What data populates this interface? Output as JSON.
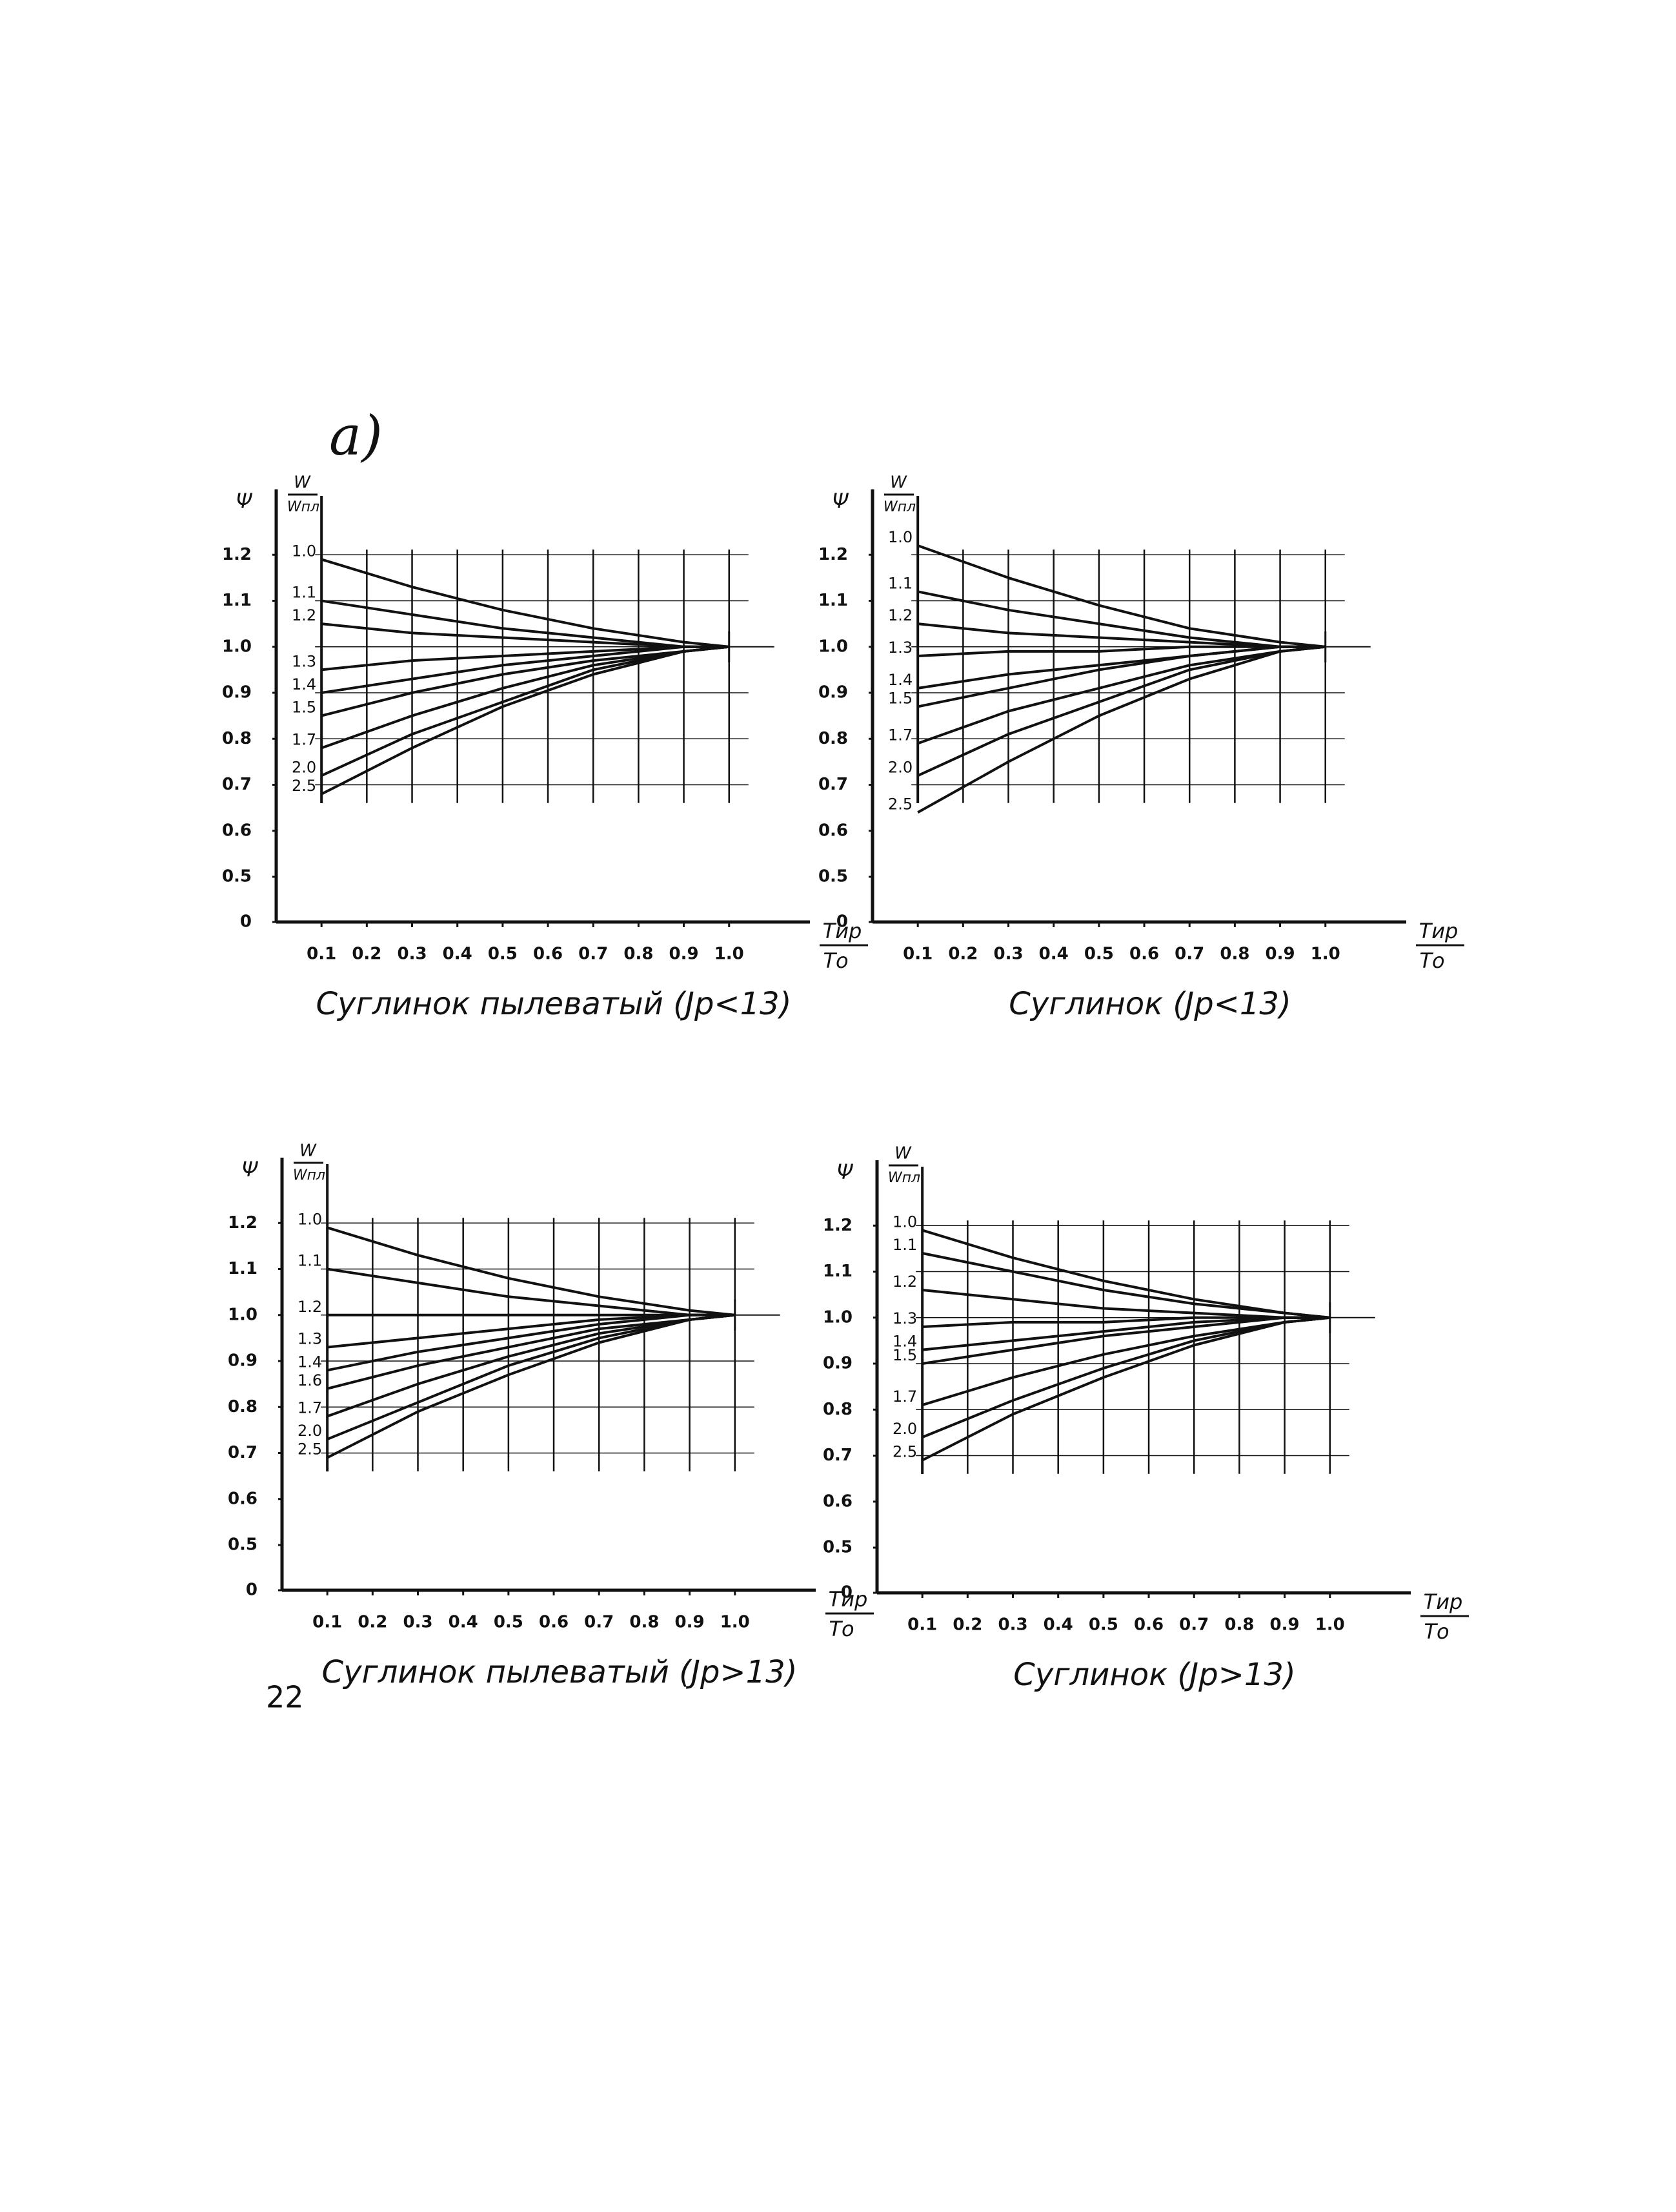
{
  "page": {
    "label": "а)",
    "page_number": "22"
  },
  "chart_data": [
    {
      "type": "line",
      "title": "Суглинок пылеватый (Jp<13)",
      "y_label": "Ψ",
      "y2_label": {
        "numerator": "W",
        "denominator": "Wпл"
      },
      "x_label": {
        "numerator": "Tир",
        "denominator": "Tо"
      },
      "x": [
        0.1,
        0.3,
        0.5,
        0.7,
        0.9,
        1.0
      ],
      "xlim": [
        0,
        1.15
      ],
      "xticks": [
        0.1,
        0.2,
        0.3,
        0.4,
        0.5,
        0.6,
        0.7,
        0.8,
        0.9,
        {
          "value": 1,
          "label": "1.0"
        }
      ],
      "ylim": [
        0,
        1.3
      ],
      "axis_break": [
        0,
        0.5
      ],
      "yticks": [
        0,
        0.5,
        0.6,
        0.7,
        0.8,
        0.9,
        {
          "value": 1,
          "label": "1.0"
        },
        1.1,
        1.2
      ],
      "grid": true,
      "color": "#111",
      "series": [
        {
          "name": "1.0",
          "values": [
            1.19,
            1.13,
            1.08,
            1.04,
            1.01,
            1.0
          ]
        },
        {
          "name": "1.1",
          "values": [
            1.1,
            1.07,
            1.04,
            1.02,
            1.0,
            1.0
          ]
        },
        {
          "name": "1.2",
          "values": [
            1.05,
            1.03,
            1.02,
            1.01,
            1.0,
            1.0
          ]
        },
        {
          "name": "1.3",
          "values": [
            0.95,
            0.97,
            0.98,
            0.99,
            1.0,
            1.0
          ]
        },
        {
          "name": "1.4",
          "values": [
            0.9,
            0.93,
            0.96,
            0.98,
            1.0,
            1.0
          ]
        },
        {
          "name": "1.5",
          "values": [
            0.85,
            0.9,
            0.94,
            0.97,
            0.99,
            1.0
          ]
        },
        {
          "name": "1.7",
          "values": [
            0.78,
            0.85,
            0.91,
            0.96,
            0.99,
            1.0
          ]
        },
        {
          "name": "2.0",
          "values": [
            0.72,
            0.81,
            0.88,
            0.95,
            0.99,
            1.0
          ]
        },
        {
          "name": "2.5",
          "values": [
            0.68,
            0.78,
            0.87,
            0.94,
            0.99,
            1.0
          ]
        }
      ]
    },
    {
      "type": "line",
      "title": "Суглинок (Jp<13)",
      "y_label": "Ψ",
      "y2_label": {
        "numerator": "W",
        "denominator": "Wпл"
      },
      "x_label": {
        "numerator": "Tир",
        "denominator": "Tо"
      },
      "x": [
        0.1,
        0.3,
        0.5,
        0.7,
        0.9,
        1.0
      ],
      "xlim": [
        0,
        1.15
      ],
      "xticks": [
        0.1,
        0.2,
        0.3,
        0.4,
        0.5,
        0.6,
        0.7,
        0.8,
        0.9,
        {
          "value": 1,
          "label": "1.0"
        }
      ],
      "ylim": [
        0,
        1.3
      ],
      "axis_break": [
        0,
        0.5
      ],
      "yticks": [
        0,
        0.5,
        0.6,
        0.7,
        0.8,
        0.9,
        {
          "value": 1,
          "label": "1.0"
        },
        1.1,
        1.2
      ],
      "grid": true,
      "color": "#111",
      "series": [
        {
          "name": "1.0",
          "values": [
            1.22,
            1.15,
            1.09,
            1.04,
            1.01,
            1.0
          ]
        },
        {
          "name": "1.1",
          "values": [
            1.12,
            1.08,
            1.05,
            1.02,
            1.0,
            1.0
          ]
        },
        {
          "name": "1.2",
          "values": [
            1.05,
            1.03,
            1.02,
            1.01,
            1.0,
            1.0
          ]
        },
        {
          "name": "1.3",
          "values": [
            0.98,
            0.99,
            0.99,
            1.0,
            1.0,
            1.0
          ]
        },
        {
          "name": "1.4",
          "values": [
            0.91,
            0.94,
            0.96,
            0.98,
            1.0,
            1.0
          ]
        },
        {
          "name": "1.5",
          "values": [
            0.87,
            0.91,
            0.95,
            0.98,
            1.0,
            1.0
          ]
        },
        {
          "name": "1.7",
          "values": [
            0.79,
            0.86,
            0.91,
            0.96,
            0.99,
            1.0
          ]
        },
        {
          "name": "2.0",
          "values": [
            0.72,
            0.81,
            0.88,
            0.95,
            0.99,
            1.0
          ]
        },
        {
          "name": "2.5",
          "values": [
            0.64,
            0.75,
            0.85,
            0.93,
            0.99,
            1.0
          ]
        }
      ]
    },
    {
      "type": "line",
      "title": "Суглинок пылеватый (Jp>13)",
      "y_label": "Ψ",
      "y2_label": {
        "numerator": "W",
        "denominator": "Wпл"
      },
      "x_label": {
        "numerator": "Tир",
        "denominator": "Tо"
      },
      "x": [
        0.1,
        0.3,
        0.5,
        0.7,
        0.9,
        1.0
      ],
      "xlim": [
        0,
        1.15
      ],
      "xticks": [
        0.1,
        0.2,
        0.3,
        0.4,
        0.5,
        0.6,
        0.7,
        0.8,
        0.9,
        {
          "value": 1,
          "label": "1.0"
        }
      ],
      "ylim": [
        0,
        1.3
      ],
      "axis_break": [
        0,
        0.5
      ],
      "yticks": [
        0,
        0.5,
        0.6,
        0.7,
        0.8,
        0.9,
        {
          "value": 1,
          "label": "1.0"
        },
        1.1,
        1.2
      ],
      "grid": true,
      "color": "#111",
      "series": [
        {
          "name": "1.0",
          "values": [
            1.19,
            1.13,
            1.08,
            1.04,
            1.01,
            1.0
          ]
        },
        {
          "name": "1.1",
          "values": [
            1.1,
            1.07,
            1.04,
            1.02,
            1.0,
            1.0
          ]
        },
        {
          "name": "1.2",
          "values": [
            1.0,
            1.0,
            1.0,
            1.0,
            1.0,
            1.0
          ]
        },
        {
          "name": "1.3",
          "values": [
            0.93,
            0.95,
            0.97,
            0.99,
            1.0,
            1.0
          ]
        },
        {
          "name": "1.4",
          "values": [
            0.88,
            0.92,
            0.95,
            0.98,
            1.0,
            1.0
          ]
        },
        {
          "name": "1.6",
          "values": [
            0.84,
            0.89,
            0.93,
            0.97,
            0.99,
            1.0
          ]
        },
        {
          "name": "1.7",
          "values": [
            0.78,
            0.85,
            0.91,
            0.96,
            0.99,
            1.0
          ]
        },
        {
          "name": "2.0",
          "values": [
            0.73,
            0.81,
            0.89,
            0.95,
            0.99,
            1.0
          ]
        },
        {
          "name": "2.5",
          "values": [
            0.69,
            0.79,
            0.87,
            0.94,
            0.99,
            1.0
          ]
        }
      ]
    },
    {
      "type": "line",
      "title": "Суглинок (Jp>13)",
      "y_label": "Ψ",
      "y2_label": {
        "numerator": "W",
        "denominator": "Wпл"
      },
      "x_label": {
        "numerator": "Tир",
        "denominator": "Tо"
      },
      "x": [
        0.1,
        0.3,
        0.5,
        0.7,
        0.9,
        1.0
      ],
      "xlim": [
        0,
        1.15
      ],
      "xticks": [
        0.1,
        0.2,
        0.3,
        0.4,
        0.5,
        0.6,
        0.7,
        0.8,
        0.9,
        {
          "value": 1,
          "label": "1.0"
        }
      ],
      "ylim": [
        0,
        1.3
      ],
      "axis_break": [
        0,
        0.5
      ],
      "yticks": [
        0,
        0.5,
        0.6,
        0.7,
        0.8,
        0.9,
        {
          "value": 1,
          "label": "1.0"
        },
        1.1,
        1.2
      ],
      "grid": true,
      "color": "#111",
      "series": [
        {
          "name": "1.0",
          "values": [
            1.19,
            1.13,
            1.08,
            1.04,
            1.01,
            1.0
          ]
        },
        {
          "name": "1.1",
          "values": [
            1.14,
            1.1,
            1.06,
            1.03,
            1.01,
            1.0
          ]
        },
        {
          "name": "1.2",
          "values": [
            1.06,
            1.04,
            1.02,
            1.01,
            1.0,
            1.0
          ]
        },
        {
          "name": "1.3",
          "values": [
            0.98,
            0.99,
            0.99,
            1.0,
            1.0,
            1.0
          ]
        },
        {
          "name": "1.4",
          "values": [
            0.93,
            0.95,
            0.97,
            0.99,
            1.0,
            1.0
          ]
        },
        {
          "name": "1.5",
          "values": [
            0.9,
            0.93,
            0.96,
            0.98,
            1.0,
            1.0
          ]
        },
        {
          "name": "1.7",
          "values": [
            0.81,
            0.87,
            0.92,
            0.96,
            0.99,
            1.0
          ]
        },
        {
          "name": "2.0",
          "values": [
            0.74,
            0.82,
            0.89,
            0.95,
            0.99,
            1.0
          ]
        },
        {
          "name": "2.5",
          "values": [
            0.69,
            0.79,
            0.87,
            0.94,
            0.99,
            1.0
          ]
        }
      ]
    }
  ]
}
